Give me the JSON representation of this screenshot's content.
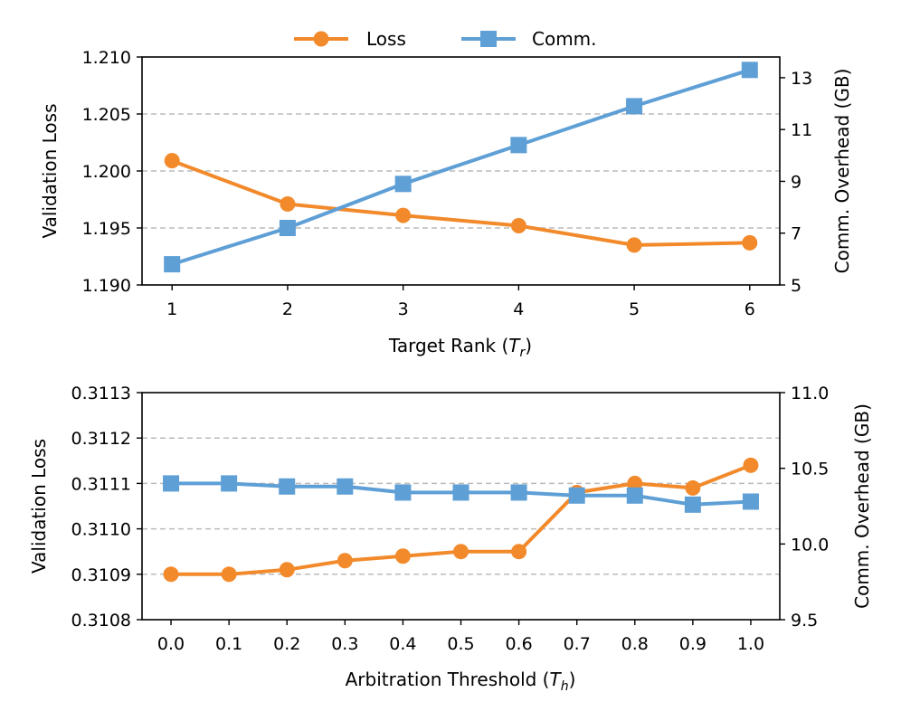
{
  "colors": {
    "loss": "#f28a2c",
    "comm": "#5e9fd6",
    "grid": "#bbbbbb"
  },
  "legend": {
    "position": "top-center",
    "items": [
      {
        "label": "Loss",
        "marker": "circle",
        "series": "loss"
      },
      {
        "label": "Comm.",
        "marker": "square",
        "series": "comm"
      }
    ]
  },
  "chart_data": [
    {
      "type": "line",
      "xlabel": "Target Rank (",
      "xlabel_symbol": "T",
      "xlabel_sub": "r",
      "xlabel_close": ")",
      "ylabel_left": "Validation Loss",
      "ylabel_right": "Comm. Overhead (GB)",
      "x": [
        1,
        2,
        3,
        4,
        5,
        6
      ],
      "xticks": [
        "1",
        "2",
        "3",
        "4",
        "5",
        "6"
      ],
      "xlim": [
        0.74,
        6.26
      ],
      "ylim_left": [
        1.19,
        1.21
      ],
      "yticks_left": [
        "1.190",
        "1.195",
        "1.200",
        "1.205",
        "1.210"
      ],
      "ylim_right": [
        5,
        13.8
      ],
      "yticks_right": [
        "5",
        "7",
        "9",
        "11",
        "13"
      ],
      "grid": "horizontal-dashed",
      "series": [
        {
          "key": "loss",
          "name": "Loss",
          "axis": "left",
          "marker": "circle",
          "values": [
            1.2009,
            1.1971,
            1.1961,
            1.1952,
            1.1935,
            1.1937
          ]
        },
        {
          "key": "comm",
          "name": "Comm.",
          "axis": "right",
          "marker": "square",
          "values": [
            5.8,
            7.2,
            8.9,
            10.4,
            11.9,
            13.3
          ]
        }
      ]
    },
    {
      "type": "line",
      "xlabel": "Arbitration Threshold (",
      "xlabel_symbol": "T",
      "xlabel_sub": "h",
      "xlabel_close": ")",
      "ylabel_left": "Validation Loss",
      "ylabel_right": "Comm. Overhead (GB)",
      "x": [
        0.0,
        0.1,
        0.2,
        0.3,
        0.4,
        0.5,
        0.6,
        0.7,
        0.8,
        0.9,
        1.0
      ],
      "xticks": [
        "0.0",
        "0.1",
        "0.2",
        "0.3",
        "0.4",
        "0.5",
        "0.6",
        "0.7",
        "0.8",
        "0.9",
        "1.0"
      ],
      "xlim": [
        -0.05,
        1.05
      ],
      "ylim_left": [
        0.3108,
        0.3113
      ],
      "yticks_left": [
        "0.3108",
        "0.3109",
        "0.3110",
        "0.3111",
        "0.3112",
        "0.3113"
      ],
      "ylim_right": [
        9.5,
        11.0
      ],
      "yticks_right": [
        "9.5",
        "10.0",
        "10.5",
        "11.0"
      ],
      "grid": "horizontal-dashed",
      "series": [
        {
          "key": "loss",
          "name": "Loss",
          "axis": "left",
          "marker": "circle",
          "values": [
            0.3109,
            0.3109,
            0.31091,
            0.31093,
            0.31094,
            0.31095,
            0.31095,
            0.31108,
            0.3111,
            0.31109,
            0.31114
          ]
        },
        {
          "key": "comm",
          "name": "Comm.",
          "axis": "right",
          "marker": "square",
          "values": [
            10.4,
            10.4,
            10.38,
            10.38,
            10.34,
            10.34,
            10.34,
            10.32,
            10.32,
            10.26,
            10.28
          ]
        }
      ]
    }
  ]
}
